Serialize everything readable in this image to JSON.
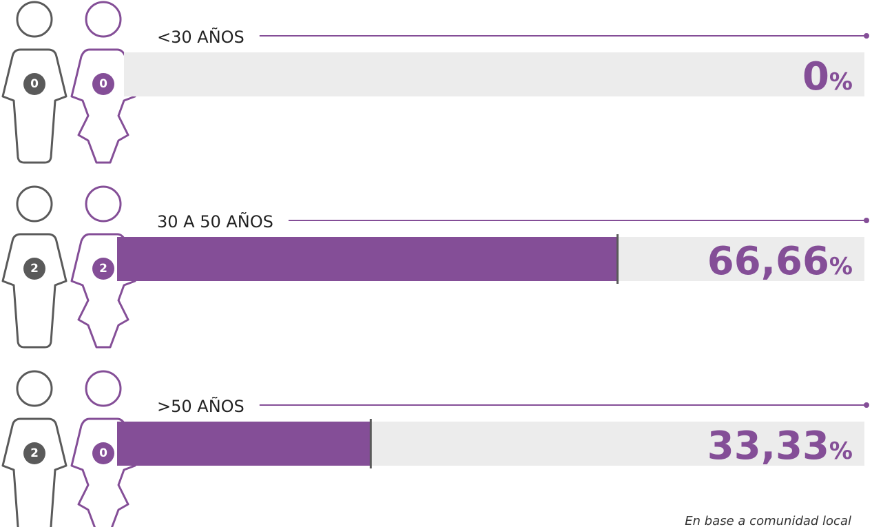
{
  "chart_data": {
    "type": "bar",
    "orientation": "horizontal",
    "categories": [
      "<30 AÑOS",
      "30 A 50 AÑOS",
      ">50 AÑOS"
    ],
    "values": [
      0,
      66.66,
      33.33
    ],
    "value_labels": [
      "0%",
      "66,66%",
      "33,33%"
    ],
    "men": [
      0,
      2,
      2
    ],
    "women": [
      0,
      2,
      0
    ],
    "xlim": [
      0,
      100
    ],
    "color": "#844e97",
    "note": "En base a comunidad local"
  }
}
